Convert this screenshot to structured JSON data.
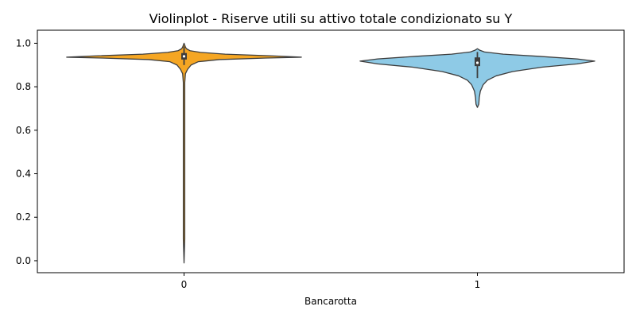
{
  "chart_data": {
    "type": "violin",
    "title": "Violinplot - Riserve utili su attivo totale condizionato su Y",
    "xlabel": "Bancarotta",
    "ylabel": "",
    "categories": [
      "0",
      "1"
    ],
    "ylim": [
      -0.055,
      1.06
    ],
    "yticks": [
      0.0,
      0.2,
      0.4,
      0.6,
      0.8,
      1.0
    ],
    "ytick_labels": [
      "0.0",
      "0.2",
      "0.4",
      "0.6",
      "0.8",
      "1.0"
    ],
    "grid": false,
    "colors": {
      "0": "#f5a623",
      "1": "#8ecae6",
      "outline": "#3d3d3d",
      "box": "#3d3d3d",
      "median": "#ffffff"
    },
    "violins": [
      {
        "category": "0",
        "min": -0.01,
        "max": 1.0,
        "q1": 0.925,
        "median": 0.94,
        "q3": 0.955,
        "whisker_low": 0.9,
        "whisker_high": 0.985,
        "density": [
          [
            -0.01,
            0.0
          ],
          [
            0.1,
            0.003
          ],
          [
            0.3,
            0.003
          ],
          [
            0.5,
            0.003
          ],
          [
            0.7,
            0.004
          ],
          [
            0.82,
            0.006
          ],
          [
            0.86,
            0.012
          ],
          [
            0.88,
            0.03
          ],
          [
            0.9,
            0.06
          ],
          [
            0.915,
            0.12
          ],
          [
            0.925,
            0.3
          ],
          [
            0.932,
            0.7
          ],
          [
            0.936,
            1.0
          ],
          [
            0.942,
            0.75
          ],
          [
            0.95,
            0.35
          ],
          [
            0.958,
            0.14
          ],
          [
            0.966,
            0.05
          ],
          [
            0.975,
            0.02
          ],
          [
            0.985,
            0.01
          ],
          [
            1.0,
            0.0
          ]
        ]
      },
      {
        "category": "1",
        "min": 0.705,
        "max": 0.975,
        "q1": 0.895,
        "median": 0.91,
        "q3": 0.935,
        "whisker_low": 0.84,
        "whisker_high": 0.96,
        "density": [
          [
            0.705,
            0.0
          ],
          [
            0.72,
            0.012
          ],
          [
            0.75,
            0.016
          ],
          [
            0.78,
            0.025
          ],
          [
            0.81,
            0.05
          ],
          [
            0.83,
            0.085
          ],
          [
            0.85,
            0.16
          ],
          [
            0.87,
            0.3
          ],
          [
            0.89,
            0.55
          ],
          [
            0.905,
            0.85
          ],
          [
            0.918,
            1.0
          ],
          [
            0.928,
            0.85
          ],
          [
            0.94,
            0.52
          ],
          [
            0.95,
            0.22
          ],
          [
            0.96,
            0.06
          ],
          [
            0.968,
            0.02
          ],
          [
            0.975,
            0.0
          ]
        ]
      }
    ]
  }
}
